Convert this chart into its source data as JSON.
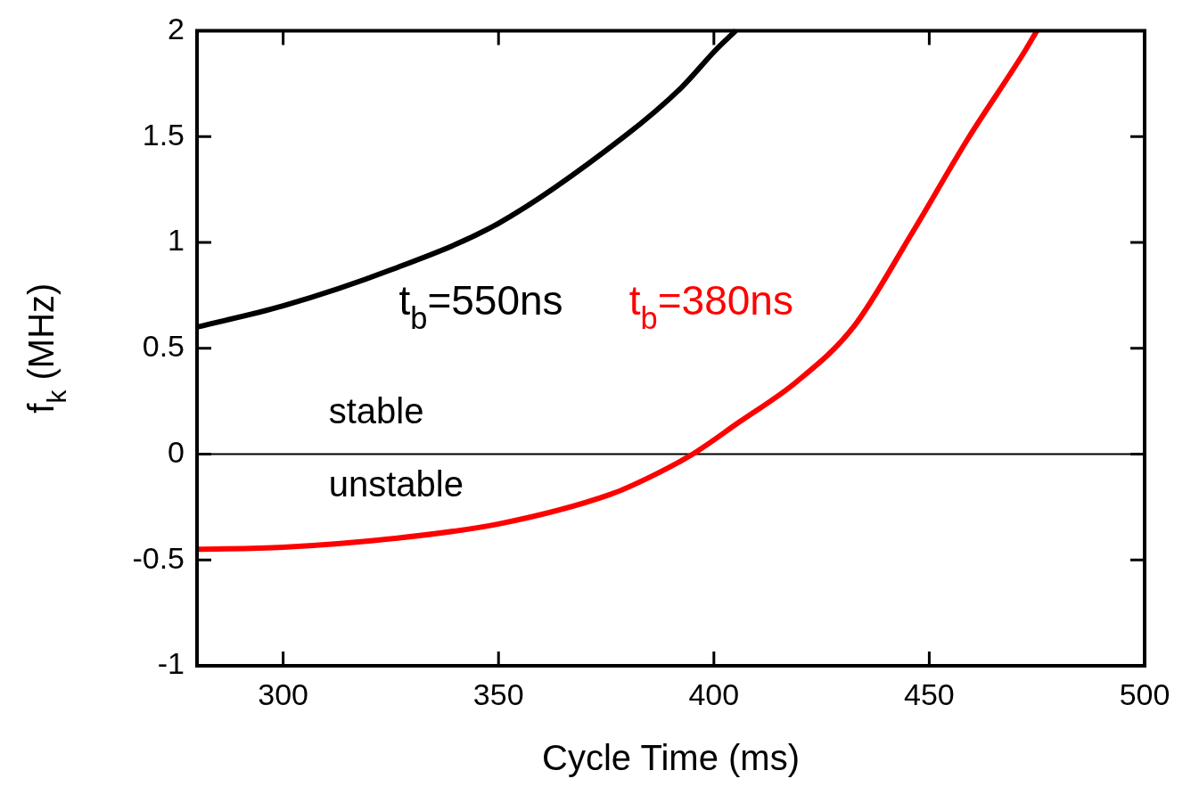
{
  "chart_data": {
    "type": "line",
    "xlabel": "Cycle Time (ms)",
    "ylabel": "f$_{k}$ (MHz)",
    "xlim": [
      280,
      500
    ],
    "ylim": [
      -1,
      2
    ],
    "xticks": [
      300,
      350,
      400,
      450,
      500
    ],
    "yticks": [
      -1,
      -0.5,
      0,
      0.5,
      1,
      1.5,
      2
    ],
    "marker": "none",
    "legend": false,
    "series": [
      {
        "name": "t$_{b}$=550ns",
        "color": "#000000",
        "x": [
          280,
          300,
          325,
          350,
          379.2,
          392.4,
          400.5,
          405.1
        ],
        "values": [
          0.6,
          0.7,
          0.87,
          1.09,
          1.5,
          1.73,
          1.91,
          2
        ]
      },
      {
        "name": "t$_{b}$=380ns",
        "color": "#ff0000",
        "x": [
          280,
          300,
          325,
          350,
          376,
          385,
          395.1,
          405.8,
          419.1,
          432.4,
          445.6,
          459,
          472.4,
          475
        ],
        "values": [
          -0.45,
          -0.44,
          -0.4,
          -0.33,
          -0.19,
          -0.11,
          0,
          0.15,
          0.34,
          0.6,
          1.03,
          1.49,
          1.91,
          2
        ]
      }
    ],
    "ref_lines": [
      {
        "axis": "y",
        "value": 0,
        "color": "#000000"
      }
    ],
    "annotations": [
      "stable",
      "unstable"
    ]
  }
}
